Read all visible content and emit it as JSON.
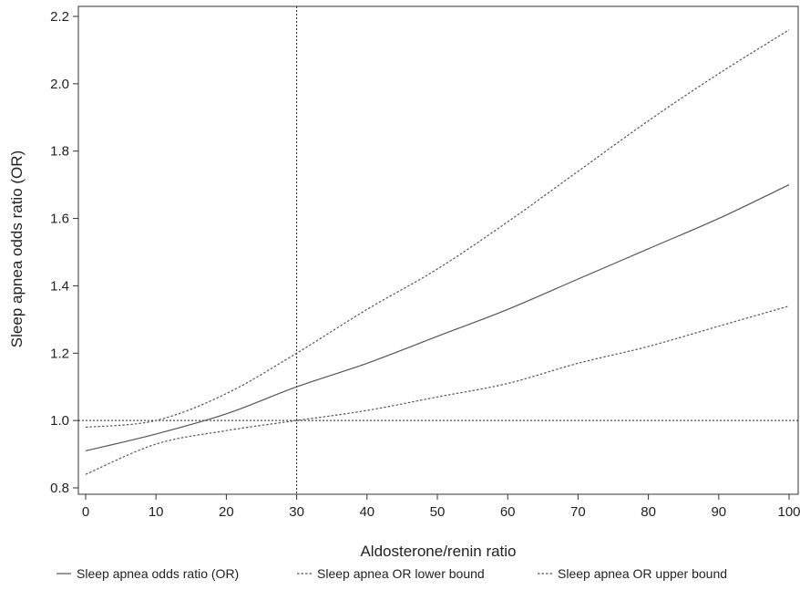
{
  "chart_data": {
    "type": "line",
    "title": "",
    "xlabel": "Aldosterone/renin ratio",
    "ylabel": "Sleep apnea odds ratio (OR)",
    "xlim": [
      0,
      100
    ],
    "ylim": [
      0.8,
      2.2
    ],
    "xticks": [
      "0",
      "10",
      "20",
      "30",
      "40",
      "50",
      "60",
      "70",
      "80",
      "90",
      "100"
    ],
    "yticks": [
      "0.8",
      "1.0",
      "1.2",
      "1.4",
      "1.6",
      "1.8",
      "2.0",
      "2.2"
    ],
    "x": [
      0,
      10,
      20,
      30,
      40,
      50,
      60,
      70,
      80,
      90,
      100
    ],
    "reference_lines": [
      {
        "axis": "y",
        "value": 1.0,
        "style": "dotted"
      },
      {
        "axis": "x",
        "value": 30,
        "style": "dotted"
      }
    ],
    "grid": false,
    "legend_position": "bottom",
    "series": [
      {
        "name": "Sleep apnea odds ratio (OR)",
        "style": "solid",
        "color": "#555555",
        "values": [
          0.91,
          0.96,
          1.02,
          1.1,
          1.17,
          1.25,
          1.33,
          1.42,
          1.51,
          1.6,
          1.7
        ]
      },
      {
        "name": "Sleep apnea OR lower bound",
        "style": "dotted",
        "color": "#555555",
        "values": [
          0.84,
          0.93,
          0.97,
          1.0,
          1.03,
          1.07,
          1.11,
          1.17,
          1.22,
          1.28,
          1.34
        ]
      },
      {
        "name": "Sleep apnea OR upper bound",
        "style": "dotted",
        "color": "#555555",
        "values": [
          0.98,
          1.0,
          1.08,
          1.2,
          1.33,
          1.45,
          1.59,
          1.74,
          1.89,
          2.03,
          2.16
        ]
      }
    ]
  }
}
